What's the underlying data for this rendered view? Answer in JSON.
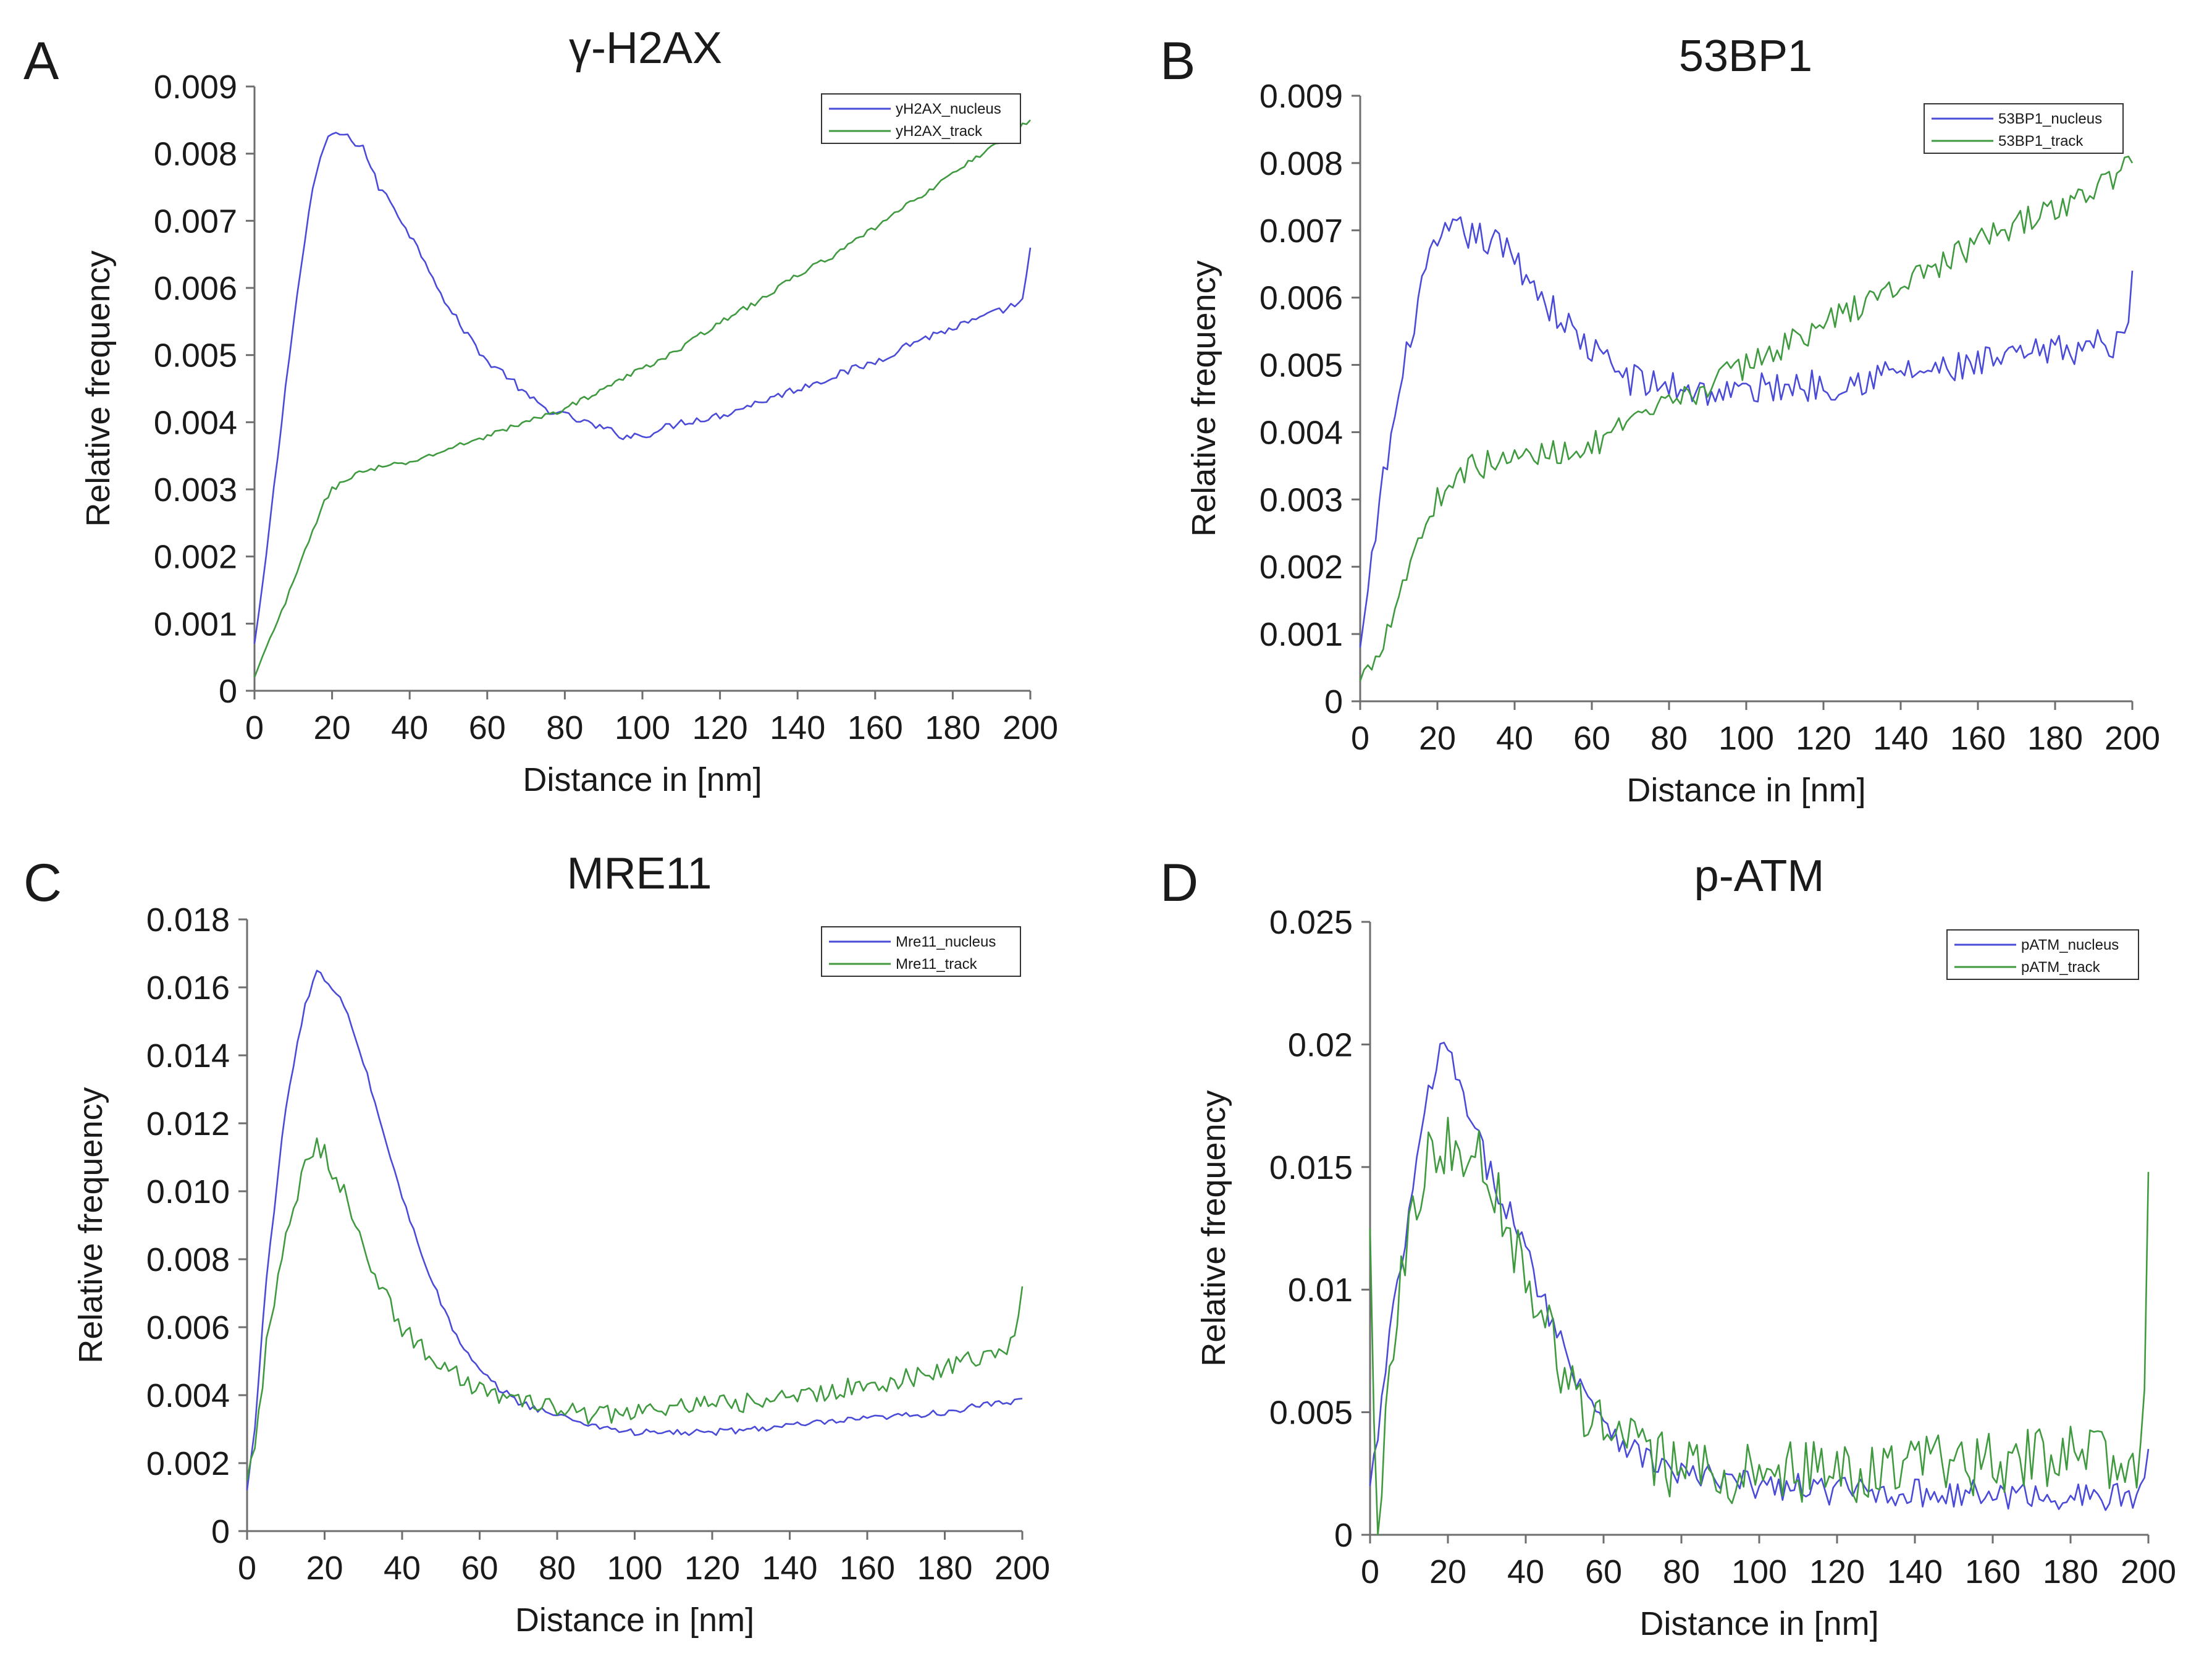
{
  "figure": {
    "description_panels": [
      "A",
      "B",
      "C",
      "D"
    ]
  },
  "chart_data": [
    {
      "panel": "A",
      "type": "line",
      "title": "γ-H2AX",
      "xlabel": "Distance in [nm]",
      "ylabel": "Relative frequency",
      "xlim": [
        0,
        200
      ],
      "ylim": [
        0,
        0.009
      ],
      "xticks": [
        "0",
        "20",
        "40",
        "60",
        "80",
        "100",
        "120",
        "140",
        "160",
        "180",
        "200"
      ],
      "yticks": [
        "0",
        "0.001",
        "0.002",
        "0.003",
        "0.004",
        "0.005",
        "0.006",
        "0.007",
        "0.008",
        "0.009"
      ],
      "ytick_values": [
        0,
        0.001,
        0.002,
        0.003,
        0.004,
        0.005,
        0.006,
        0.007,
        0.008,
        0.009
      ],
      "legend_position": "top-right",
      "series": [
        {
          "name": "yH2AX_nucleus",
          "color": "#4a4ad8",
          "noise": 6e-05,
          "x": [
            0,
            2,
            5,
            10,
            15,
            18,
            20,
            22,
            25,
            28,
            30,
            32,
            35,
            40,
            45,
            50,
            55,
            60,
            65,
            70,
            75,
            80,
            85,
            90,
            95,
            100,
            110,
            120,
            130,
            140,
            150,
            160,
            170,
            180,
            190,
            198,
            200
          ],
          "y": [
            0.0007,
            0.0015,
            0.003,
            0.0055,
            0.0075,
            0.0081,
            0.0083,
            0.0083,
            0.0082,
            0.0081,
            0.0078,
            0.0075,
            0.0073,
            0.0068,
            0.0063,
            0.0057,
            0.0053,
            0.0049,
            0.0047,
            0.0044,
            0.0042,
            0.0041,
            0.004,
            0.0039,
            0.0038,
            0.0038,
            0.004,
            0.0041,
            0.0043,
            0.0045,
            0.0047,
            0.0049,
            0.0052,
            0.0054,
            0.0056,
            0.0058,
            0.0066
          ]
        },
        {
          "name": "yH2AX_track",
          "color": "#3f9a3f",
          "noise": 4e-05,
          "x": [
            0,
            5,
            10,
            15,
            18,
            20,
            25,
            30,
            40,
            50,
            60,
            70,
            80,
            90,
            100,
            110,
            120,
            130,
            140,
            150,
            160,
            170,
            180,
            190,
            200
          ],
          "y": [
            0.0002,
            0.0009,
            0.0016,
            0.0024,
            0.0028,
            0.003,
            0.0032,
            0.0033,
            0.0034,
            0.0036,
            0.0038,
            0.004,
            0.0042,
            0.0045,
            0.0048,
            0.0051,
            0.0055,
            0.0058,
            0.0062,
            0.0065,
            0.0069,
            0.0073,
            0.0077,
            0.0081,
            0.0085
          ]
        }
      ]
    },
    {
      "panel": "B",
      "type": "line",
      "title": "53BP1",
      "xlabel": "Distance in [nm]",
      "ylabel": "Relative frequency",
      "xlim": [
        0,
        200
      ],
      "ylim": [
        0,
        0.009
      ],
      "xticks": [
        "0",
        "20",
        "40",
        "60",
        "80",
        "100",
        "120",
        "140",
        "160",
        "180",
        "200"
      ],
      "yticks": [
        "0",
        "0.001",
        "0.002",
        "0.003",
        "0.004",
        "0.005",
        "0.006",
        "0.007",
        "0.008",
        "0.009"
      ],
      "ytick_values": [
        0,
        0.001,
        0.002,
        0.003,
        0.004,
        0.005,
        0.006,
        0.007,
        0.008,
        0.009
      ],
      "legend_position": "top-right",
      "series": [
        {
          "name": "53BP1_nucleus",
          "color": "#4a4ad8",
          "noise": 0.00025,
          "x": [
            0,
            2,
            5,
            10,
            15,
            20,
            25,
            30,
            35,
            40,
            45,
            50,
            55,
            60,
            65,
            70,
            75,
            80,
            90,
            100,
            110,
            120,
            130,
            140,
            150,
            160,
            170,
            180,
            190,
            198,
            200
          ],
          "y": [
            0.0008,
            0.0015,
            0.003,
            0.0045,
            0.006,
            0.0068,
            0.007,
            0.0069,
            0.0068,
            0.0066,
            0.0062,
            0.0058,
            0.0055,
            0.0052,
            0.005,
            0.0048,
            0.0047,
            0.0047,
            0.0046,
            0.0046,
            0.0047,
            0.0047,
            0.0048,
            0.0049,
            0.0049,
            0.005,
            0.0051,
            0.0052,
            0.0053,
            0.0053,
            0.0064
          ]
        },
        {
          "name": "53BP1_track",
          "color": "#3f9a3f",
          "noise": 0.0002,
          "x": [
            0,
            5,
            10,
            15,
            20,
            25,
            30,
            40,
            50,
            60,
            70,
            80,
            90,
            100,
            110,
            120,
            130,
            140,
            150,
            160,
            170,
            180,
            190,
            200
          ],
          "y": [
            0.0003,
            0.0008,
            0.0016,
            0.0024,
            0.003,
            0.0034,
            0.0035,
            0.0036,
            0.0037,
            0.0038,
            0.0041,
            0.0044,
            0.0047,
            0.005,
            0.0053,
            0.0056,
            0.0059,
            0.0062,
            0.0065,
            0.0068,
            0.0071,
            0.0073,
            0.0076,
            0.008
          ]
        }
      ]
    },
    {
      "panel": "C",
      "type": "line",
      "title": "MRE11",
      "xlabel": "Distance in [nm]",
      "ylabel": "Relative frequency",
      "xlim": [
        0,
        200
      ],
      "ylim": [
        0,
        0.018
      ],
      "xticks": [
        "0",
        "20",
        "40",
        "60",
        "80",
        "100",
        "120",
        "140",
        "160",
        "180",
        "200"
      ],
      "yticks": [
        "0",
        "0.002",
        "0.004",
        "0.006",
        "0.008",
        "0.010",
        "0.012",
        "0.014",
        "0.016",
        "0.018"
      ],
      "ytick_values": [
        0,
        0.002,
        0.004,
        0.006,
        0.008,
        0.01,
        0.012,
        0.014,
        0.016,
        0.018
      ],
      "legend_position": "top-right",
      "series": [
        {
          "name": "Mre11_nucleus",
          "color": "#4a4ad8",
          "noise": 0.0001,
          "x": [
            0,
            2,
            5,
            10,
            15,
            18,
            20,
            25,
            30,
            35,
            40,
            45,
            50,
            55,
            60,
            65,
            70,
            75,
            80,
            90,
            100,
            110,
            120,
            130,
            140,
            150,
            160,
            170,
            180,
            190,
            198,
            200
          ],
          "y": [
            0.0012,
            0.003,
            0.0075,
            0.0125,
            0.0155,
            0.0165,
            0.0162,
            0.0155,
            0.0138,
            0.0118,
            0.0098,
            0.0082,
            0.0067,
            0.0055,
            0.0047,
            0.0042,
            0.0038,
            0.0036,
            0.0034,
            0.0031,
            0.0029,
            0.0029,
            0.0029,
            0.003,
            0.0031,
            0.0032,
            0.0033,
            0.0034,
            0.0035,
            0.0037,
            0.0038,
            0.0039
          ]
        },
        {
          "name": "Mre11_track",
          "color": "#3f9a3f",
          "noise": 0.0003,
          "x": [
            0,
            2,
            5,
            10,
            15,
            18,
            20,
            25,
            30,
            35,
            40,
            45,
            50,
            55,
            60,
            70,
            80,
            90,
            100,
            110,
            120,
            130,
            140,
            150,
            160,
            170,
            180,
            190,
            198,
            200
          ],
          "y": [
            0.0015,
            0.0025,
            0.0055,
            0.0085,
            0.0108,
            0.0113,
            0.0111,
            0.01,
            0.0085,
            0.007,
            0.006,
            0.0054,
            0.0049,
            0.0045,
            0.0042,
            0.0038,
            0.0036,
            0.0034,
            0.0035,
            0.0036,
            0.0037,
            0.0038,
            0.0039,
            0.0041,
            0.0043,
            0.0045,
            0.0048,
            0.0052,
            0.0055,
            0.0072
          ]
        }
      ]
    },
    {
      "panel": "D",
      "type": "line",
      "title": "p-ATM",
      "xlabel": "Distance in [nm]",
      "ylabel": "Relative frequency",
      "xlim": [
        0,
        200
      ],
      "ylim": [
        0,
        0.025
      ],
      "xticks": [
        "0",
        "20",
        "40",
        "60",
        "80",
        "100",
        "120",
        "140",
        "160",
        "180",
        "200"
      ],
      "yticks": [
        "0",
        "0.005",
        "0.01",
        "0.015",
        "0.02",
        "0.025"
      ],
      "ytick_values": [
        0,
        0.005,
        0.01,
        0.015,
        0.02,
        0.025
      ],
      "legend_position": "top-right",
      "series": [
        {
          "name": "pATM_nucleus",
          "color": "#4a4ad8",
          "noise": 0.0006,
          "x": [
            0,
            2,
            5,
            10,
            15,
            18,
            20,
            22,
            25,
            28,
            30,
            35,
            40,
            45,
            50,
            55,
            60,
            65,
            70,
            75,
            80,
            90,
            100,
            110,
            120,
            130,
            140,
            150,
            160,
            170,
            180,
            190,
            198,
            200
          ],
          "y": [
            0.002,
            0.004,
            0.008,
            0.013,
            0.018,
            0.0195,
            0.0198,
            0.019,
            0.017,
            0.016,
            0.015,
            0.0135,
            0.0115,
            0.0095,
            0.0075,
            0.006,
            0.0048,
            0.0038,
            0.0032,
            0.0028,
            0.0025,
            0.0022,
            0.002,
            0.0019,
            0.0018,
            0.0018,
            0.0017,
            0.0017,
            0.0016,
            0.0016,
            0.0016,
            0.0015,
            0.0016,
            0.0035
          ]
        },
        {
          "name": "pATM_track",
          "color": "#3f9a3f",
          "noise": 0.0013,
          "x": [
            0,
            1,
            2,
            5,
            10,
            15,
            20,
            25,
            28,
            30,
            35,
            40,
            45,
            50,
            55,
            60,
            70,
            80,
            90,
            100,
            110,
            120,
            130,
            140,
            150,
            160,
            170,
            180,
            190,
            198,
            199,
            200
          ],
          "y": [
            0.0125,
            0.004,
            0.0008,
            0.007,
            0.013,
            0.0155,
            0.0158,
            0.0158,
            0.016,
            0.015,
            0.013,
            0.0105,
            0.0085,
            0.0065,
            0.0052,
            0.0042,
            0.0032,
            0.0027,
            0.0025,
            0.0025,
            0.0025,
            0.0026,
            0.0026,
            0.0027,
            0.0028,
            0.003,
            0.0031,
            0.0032,
            0.003,
            0.0026,
            0.007,
            0.0148
          ]
        }
      ]
    }
  ]
}
